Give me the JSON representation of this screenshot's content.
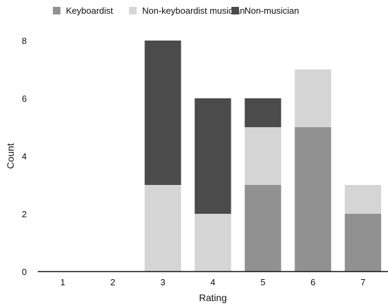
{
  "chart_data": {
    "type": "bar",
    "stacked": true,
    "categories": [
      "1",
      "2",
      "3",
      "4",
      "5",
      "6",
      "7"
    ],
    "series": [
      {
        "name": "Keyboardist",
        "color": "#919191",
        "values": [
          0,
          0,
          0,
          0,
          3,
          5,
          2
        ]
      },
      {
        "name": "Non-keyboardist musician",
        "color": "#d5d5d5",
        "values": [
          0,
          0,
          3,
          2,
          2,
          2,
          1
        ]
      },
      {
        "name": "Non-musician",
        "color": "#4b4b4b",
        "values": [
          0,
          0,
          5,
          4,
          1,
          0,
          0
        ]
      }
    ],
    "xlabel": "Rating",
    "ylabel": "Count",
    "ylim": [
      0,
      8
    ],
    "yticks": [
      0,
      2,
      4,
      6,
      8
    ],
    "grid": false,
    "legend_position": "top"
  }
}
